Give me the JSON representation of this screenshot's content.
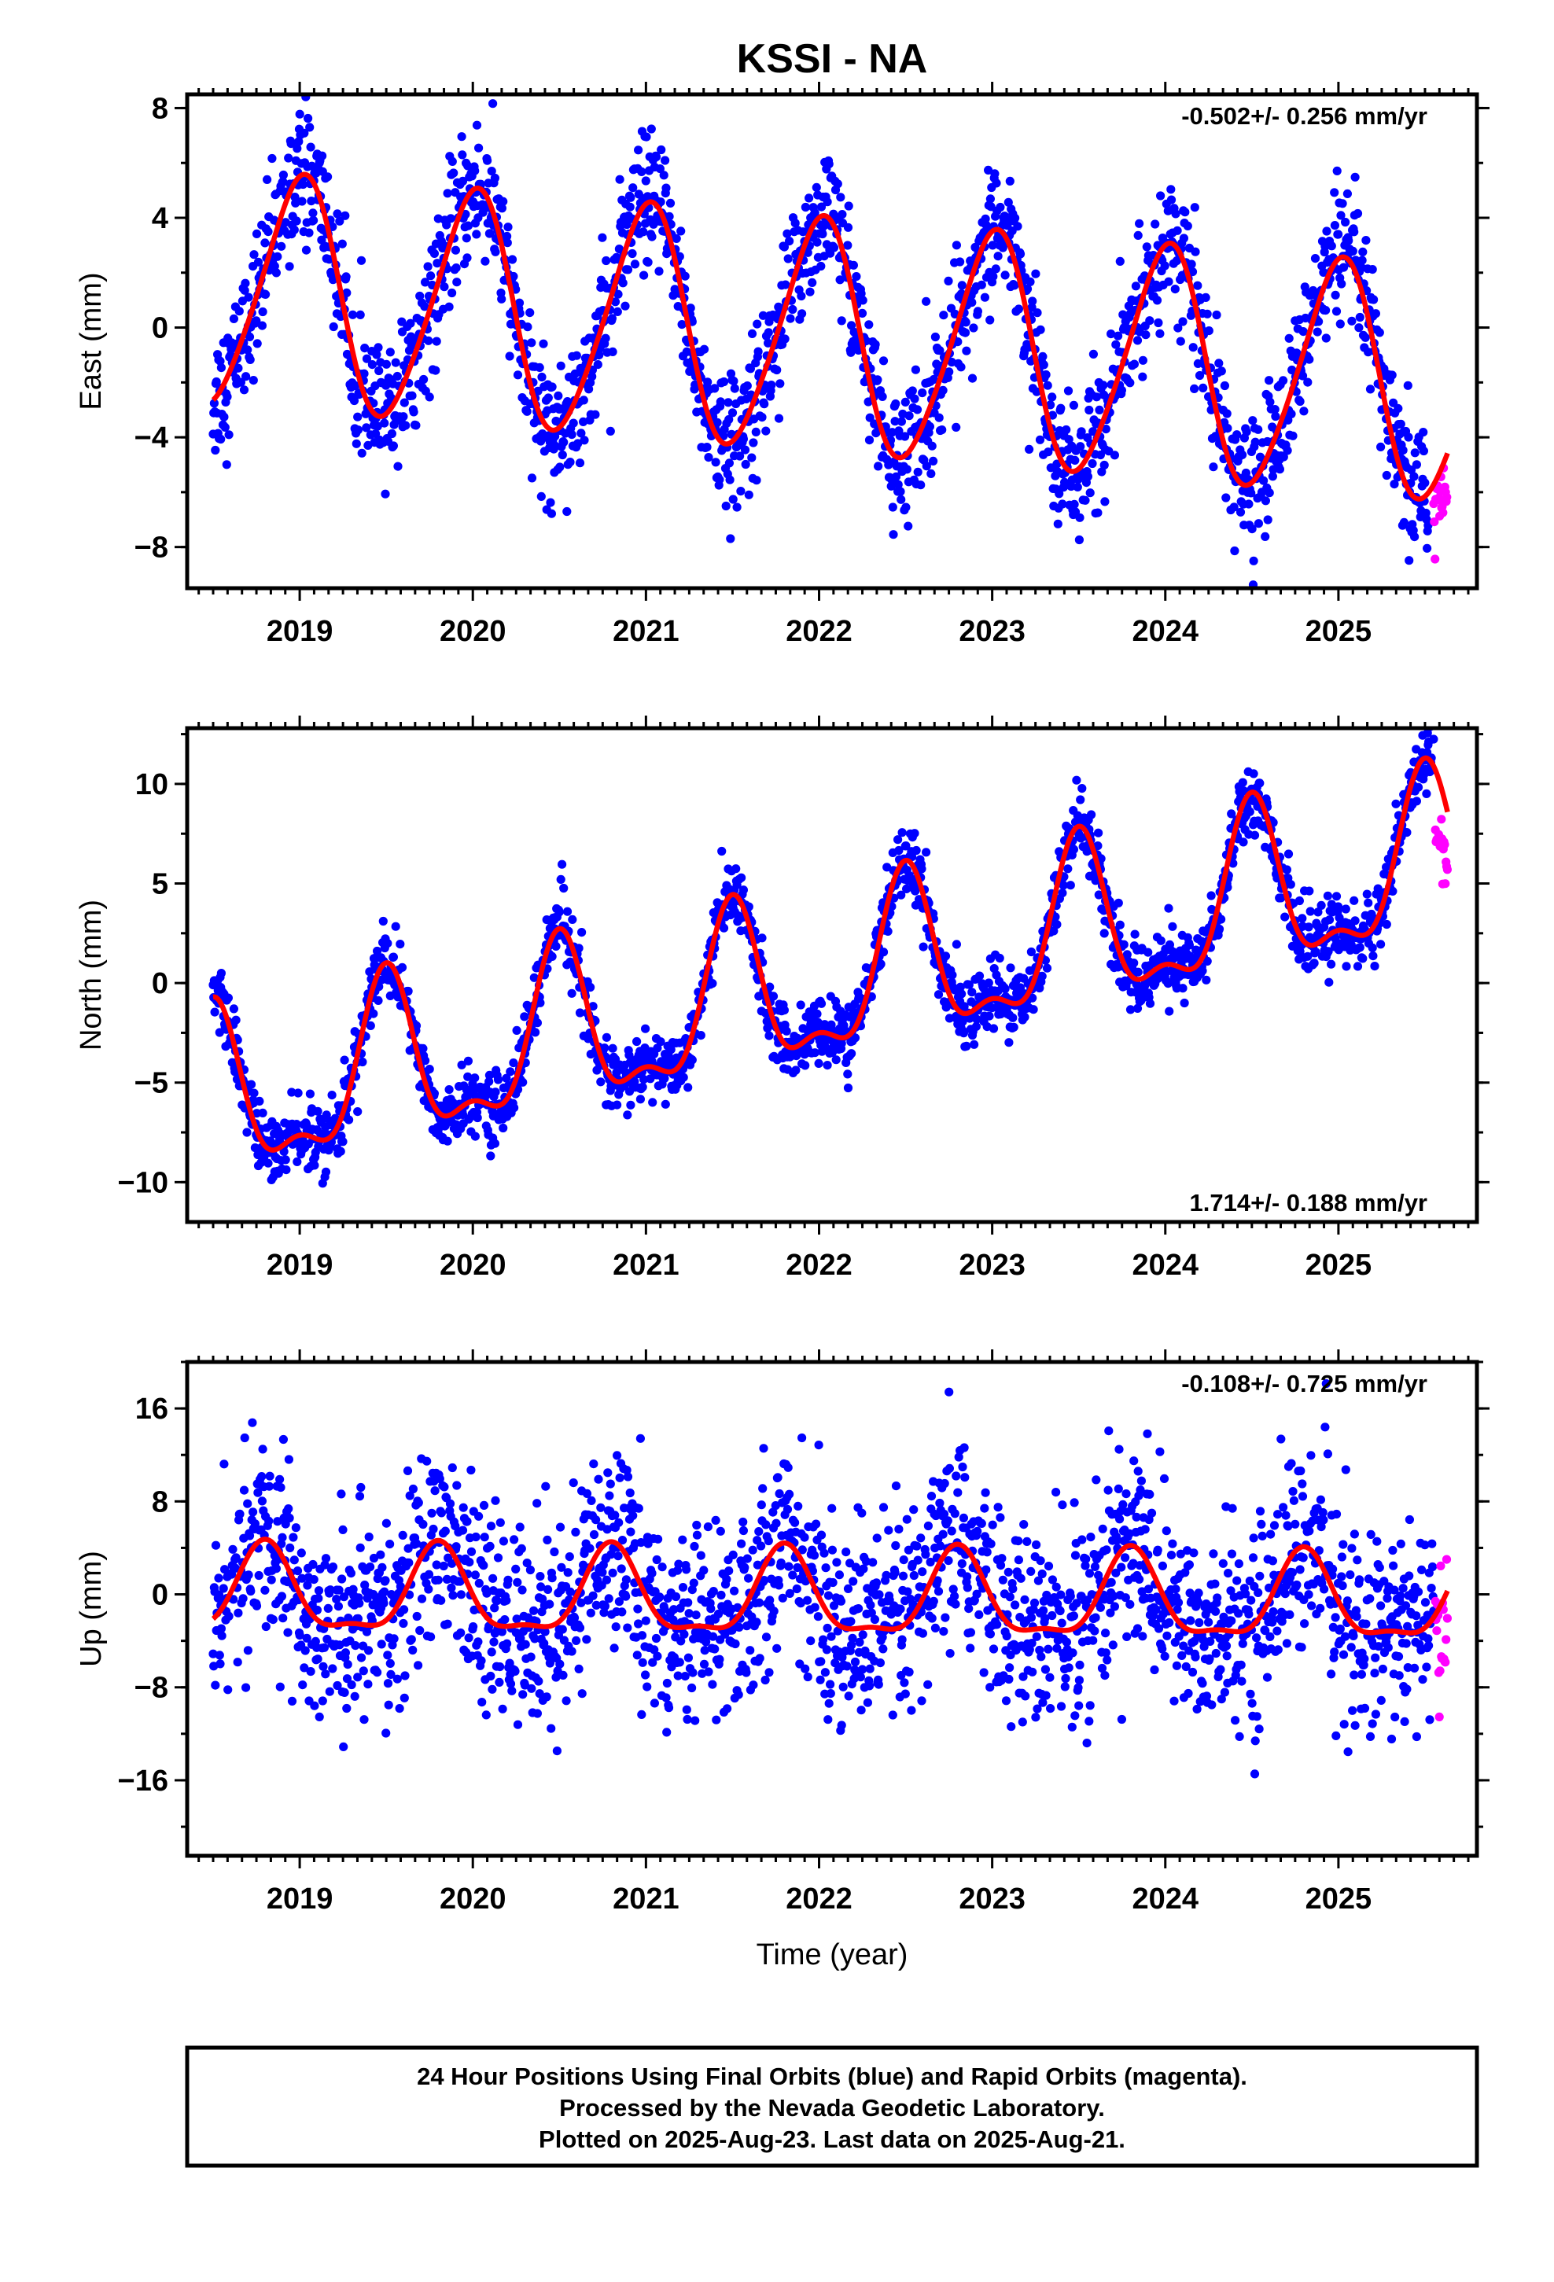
{
  "title": "KSSI - NA",
  "xlabel": "Time (year)",
  "colors": {
    "final": "#0000ff",
    "rapid": "#ff00ff",
    "model": "#ff0000",
    "frame": "#000000"
  },
  "caption": {
    "line1": "24 Hour Positions Using Final Orbits (blue) and Rapid Orbits (magenta).",
    "line2": "Processed by the Nevada Geodetic Laboratory.",
    "line3": "Plotted on 2025-Aug-23. Last data on 2025-Aug-21."
  },
  "chart_data": [
    {
      "type": "scatter",
      "id": "east",
      "ylabel": "East (mm)",
      "rate_label": "-0.502+/- 0.256 mm/yr",
      "xlim": [
        2018.35,
        2025.8
      ],
      "ylim": [
        -9.5,
        8.5
      ],
      "xticks": [
        2019,
        2020,
        2021,
        2022,
        2023,
        2024,
        2025
      ],
      "yticks": [
        -8,
        -4,
        0,
        4,
        8
      ],
      "model": {
        "offset": -0.35,
        "trend": -0.502,
        "annual_amp": 4.2,
        "annual_phase": 2019.0,
        "semi_amp": 0.5,
        "semi_phase": 2019.1,
        "t0": 2022.0
      },
      "scatter_sd": 1.2,
      "data_span": [
        2018.5,
        2025.52
      ],
      "rapid_span": [
        2025.55,
        2025.63
      ],
      "rapid_offset": -1.0
    },
    {
      "type": "scatter",
      "id": "north",
      "ylabel": "North (mm)",
      "rate_label": "1.714+/- 0.188 mm/yr",
      "xlim": [
        2018.35,
        2025.8
      ],
      "ylim": [
        -12,
        12.8
      ],
      "xticks": [
        2019,
        2020,
        2021,
        2022,
        2023,
        2024,
        2025
      ],
      "yticks": [
        -10,
        -5,
        0,
        5,
        10
      ],
      "model": {
        "offset": -0.2,
        "trend": 1.714,
        "annual_amp": 3.9,
        "annual_phase": 2019.5,
        "semi_amp": 1.6,
        "semi_phase": 2019.5,
        "t0": 2022.0
      },
      "scatter_sd": 0.85,
      "data_span": [
        2018.5,
        2025.55
      ],
      "rapid_span": [
        2025.56,
        2025.63
      ],
      "rapid_offset": -3.0
    },
    {
      "type": "scatter",
      "id": "up",
      "ylabel": "Up (mm)",
      "rate_label": "-0.108+/- 0.725 mm/yr",
      "xlim": [
        2018.35,
        2025.8
      ],
      "ylim": [
        -22.5,
        20
      ],
      "xticks": [
        2019,
        2020,
        2021,
        2022,
        2023,
        2024,
        2025
      ],
      "yticks": [
        -16,
        -8,
        0,
        8,
        16
      ],
      "model": {
        "offset": -0.4,
        "trend": -0.108,
        "annual_amp": 3.6,
        "annual_phase": 2018.8,
        "semi_amp": 1.2,
        "semi_phase": 2018.8,
        "t0": 2022.0
      },
      "scatter_sd": 4.3,
      "data_span": [
        2018.5,
        2025.55
      ],
      "rapid_span": [
        2025.56,
        2025.63
      ],
      "rapid_offset": -2.5
    }
  ]
}
